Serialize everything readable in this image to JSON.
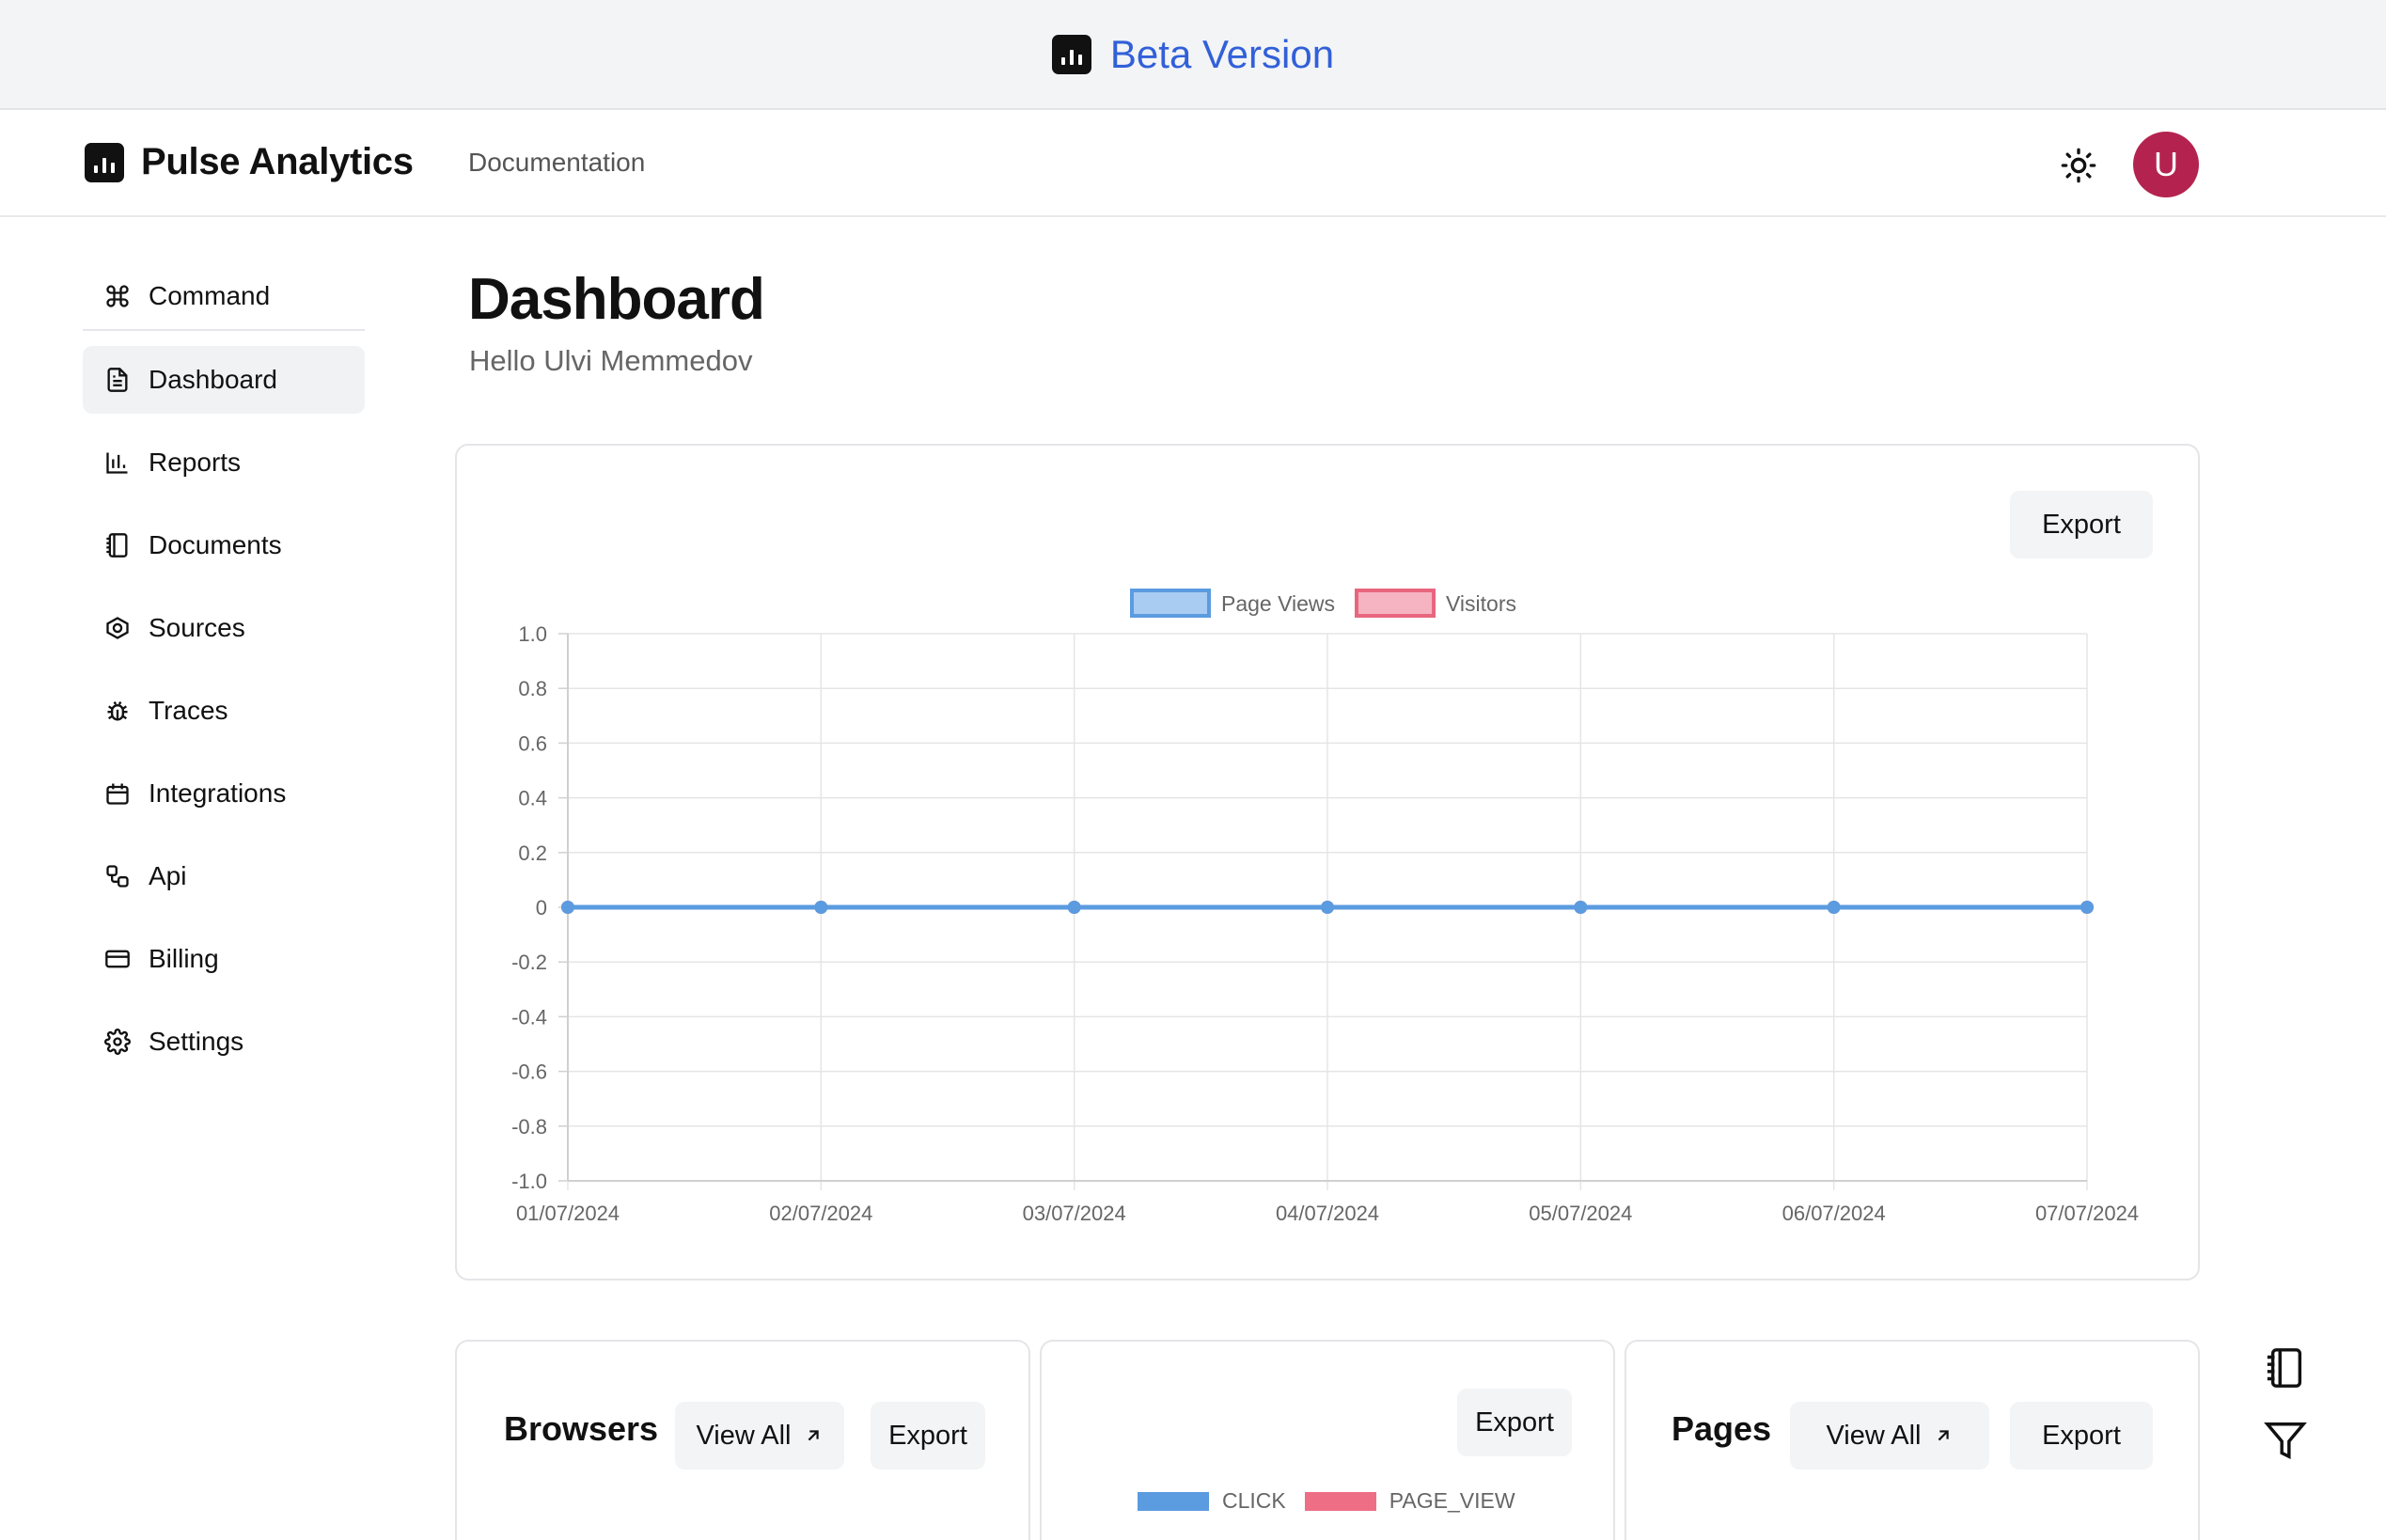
{
  "banner": {
    "text": "Beta Version"
  },
  "brand": {
    "name": "Pulse Analytics"
  },
  "nav": {
    "documentation": "Documentation",
    "avatar_letter": "U"
  },
  "sidebar": {
    "items": [
      {
        "label": "Command",
        "icon": "command-icon"
      },
      {
        "label": "Dashboard",
        "icon": "file-text-icon",
        "active": true
      },
      {
        "label": "Reports",
        "icon": "bar-chart-icon"
      },
      {
        "label": "Documents",
        "icon": "notebook-icon"
      },
      {
        "label": "Sources",
        "icon": "hexagon-icon"
      },
      {
        "label": "Traces",
        "icon": "bug-icon"
      },
      {
        "label": "Integrations",
        "icon": "calendar-icon"
      },
      {
        "label": "Api",
        "icon": "workflow-icon"
      },
      {
        "label": "Billing",
        "icon": "credit-card-icon"
      },
      {
        "label": "Settings",
        "icon": "gear-icon"
      }
    ]
  },
  "page": {
    "title": "Dashboard",
    "subtitle": "Hello Ulvi Memmedov"
  },
  "main_card": {
    "export_label": "Export"
  },
  "chart_data": {
    "type": "line",
    "categories": [
      "01/07/2024",
      "02/07/2024",
      "03/07/2024",
      "04/07/2024",
      "05/07/2024",
      "06/07/2024",
      "07/07/2024"
    ],
    "series": [
      {
        "name": "Page Views",
        "values": [
          0,
          0,
          0,
          0,
          0,
          0,
          0
        ],
        "color": "#5b9be0",
        "fill": "#a9ccf2"
      },
      {
        "name": "Visitors",
        "values": [
          0,
          0,
          0,
          0,
          0,
          0,
          0
        ],
        "color": "#e8667f",
        "fill": "#f6b3c1"
      }
    ],
    "yticks": [
      "1.0",
      "0.8",
      "0.6",
      "0.4",
      "0.2",
      "0",
      "-0.2",
      "-0.4",
      "-0.6",
      "-0.8",
      "-1.0"
    ],
    "ylim": [
      -1,
      1
    ],
    "grid": true,
    "legend": "top-center"
  },
  "browsers_card": {
    "title": "Browsers",
    "view_all": "View All",
    "export": "Export"
  },
  "events_card": {
    "export": "Export",
    "legend": [
      {
        "name": "CLICK",
        "color": "#5b9be0"
      },
      {
        "name": "PAGE_VIEW",
        "color": "#ee6e85"
      }
    ]
  },
  "pages_card": {
    "title": "Pages",
    "view_all": "View All",
    "export": "Export"
  },
  "colors": {
    "accent": "#3160d8",
    "avatar": "#b4234f"
  }
}
